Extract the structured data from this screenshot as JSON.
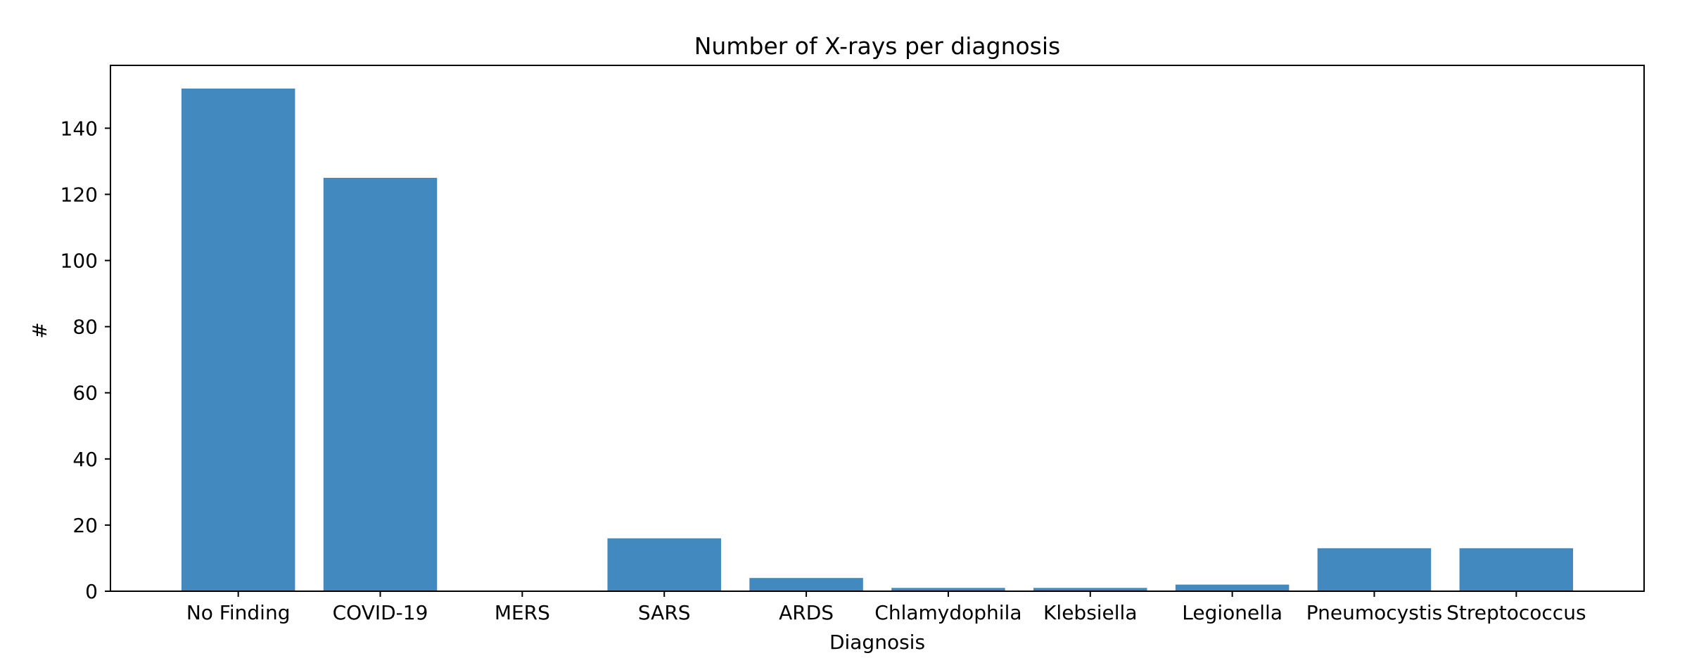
{
  "chart_data": {
    "type": "bar",
    "title": "Number of X-rays per diagnosis",
    "xlabel": "Diagnosis",
    "ylabel": "#",
    "categories": [
      "No Finding",
      "COVID-19",
      "MERS",
      "SARS",
      "ARDS",
      "Chlamydophila",
      "Klebsiella",
      "Legionella",
      "Pneumocystis",
      "Streptococcus"
    ],
    "values": [
      152,
      125,
      0,
      16,
      4,
      1,
      1,
      2,
      13,
      13
    ],
    "ylim": [
      0,
      159
    ],
    "yticks": [
      0,
      20,
      40,
      60,
      80,
      100,
      120,
      140
    ],
    "grid": false,
    "bar_color": "#4189be"
  }
}
